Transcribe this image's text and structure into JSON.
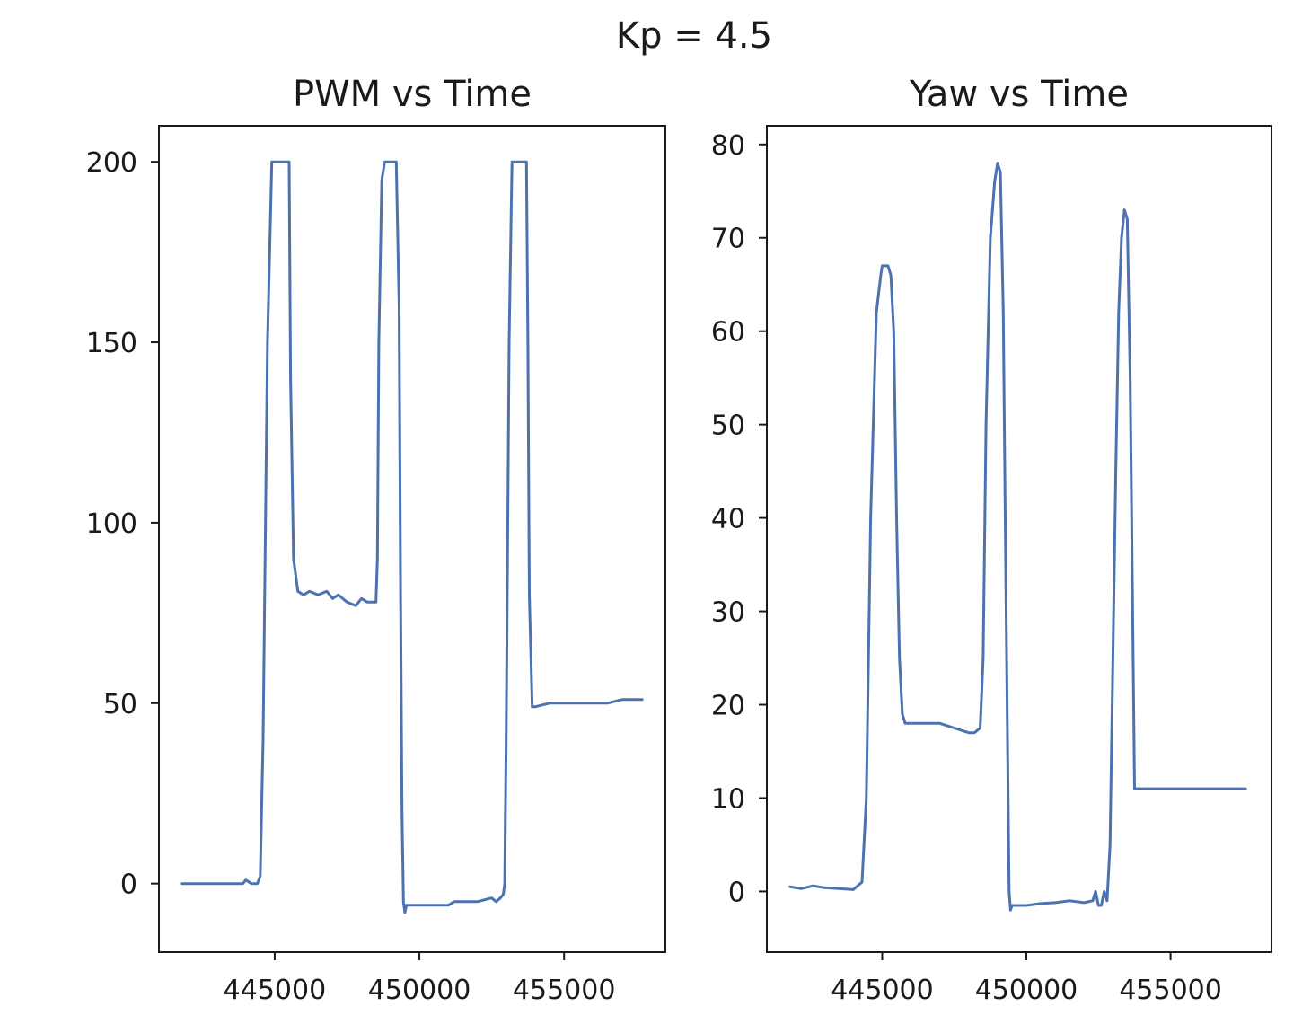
{
  "figure": {
    "suptitle": "Kp = 4.5",
    "line_color": "#4c72b0"
  },
  "chart_data": [
    {
      "type": "line",
      "title": "PWM vs Time",
      "xlabel": "",
      "ylabel": "",
      "xlim": [
        441000,
        458500
      ],
      "ylim": [
        -19,
        210
      ],
      "xticks": [
        445000,
        450000,
        455000
      ],
      "yticks": [
        0,
        50,
        100,
        150,
        200
      ],
      "grid": false,
      "legend": "none",
      "series": [
        {
          "x": [
            441800,
            442500,
            443500,
            443900,
            444000,
            444200,
            444400,
            444500,
            444600,
            444750,
            444900,
            445000,
            445200,
            445400,
            445450,
            445500,
            445550,
            445650,
            445800,
            446000,
            446200,
            446500,
            446800,
            447000,
            447200,
            447500,
            447800,
            448000,
            448200,
            448500,
            448550,
            448600,
            448700,
            448800,
            448900,
            449050,
            449200,
            449300,
            449350,
            449400,
            449450,
            449500,
            449550,
            449600,
            450000,
            450500,
            451000,
            451200,
            451500,
            452000,
            452500,
            452650,
            452800,
            452900,
            452950,
            453000,
            453100,
            453200,
            453400,
            453600,
            453700,
            453750,
            453800,
            453900,
            454000,
            454500,
            455000,
            455500,
            456000,
            456500,
            457000,
            457500,
            457700
          ],
          "y": [
            0,
            0,
            0,
            0,
            1,
            0,
            0,
            2,
            40,
            150,
            200,
            200,
            200,
            200,
            200,
            200,
            140,
            90,
            81,
            80,
            81,
            80,
            81,
            79,
            80,
            78,
            77,
            79,
            78,
            78,
            90,
            150,
            195,
            200,
            200,
            200,
            200,
            160,
            80,
            20,
            -5,
            -8,
            -6,
            -6,
            -6,
            -6,
            -6,
            -5,
            -5,
            -5,
            -4,
            -5,
            -4,
            -3,
            0,
            40,
            150,
            200,
            200,
            200,
            200,
            150,
            80,
            49,
            49,
            50,
            50,
            50,
            50,
            50,
            51,
            51,
            51
          ]
        }
      ]
    },
    {
      "type": "line",
      "title": "Yaw vs Time",
      "xlabel": "",
      "ylabel": "",
      "xlim": [
        441000,
        458500
      ],
      "ylim": [
        -6.5,
        82
      ],
      "xticks": [
        445000,
        450000,
        455000
      ],
      "yticks": [
        0,
        10,
        20,
        30,
        40,
        50,
        60,
        70,
        80
      ],
      "grid": false,
      "legend": "none",
      "series": [
        {
          "x": [
            441800,
            442200,
            442600,
            443000,
            443500,
            444000,
            444300,
            444450,
            444600,
            444800,
            444950,
            445000,
            445200,
            445300,
            445400,
            445500,
            445600,
            445700,
            445800,
            446000,
            446500,
            447000,
            447500,
            448000,
            448200,
            448400,
            448500,
            448600,
            448750,
            448900,
            449000,
            449100,
            449200,
            449300,
            449400,
            449450,
            449500,
            449550,
            449600,
            450000,
            450500,
            451000,
            451500,
            452000,
            452300,
            452400,
            452500,
            452600,
            452700,
            452800,
            452900,
            453000,
            453100,
            453200,
            453300,
            453400,
            453500,
            453600,
            453700,
            453750,
            454000,
            454500,
            455000,
            455500,
            456000,
            456500,
            457000,
            457600
          ],
          "y": [
            0.5,
            0.3,
            0.6,
            0.4,
            0.3,
            0.2,
            1,
            10,
            40,
            62,
            66,
            67,
            67,
            66,
            60,
            40,
            25,
            19,
            18,
            18,
            18,
            18,
            17.5,
            17,
            17,
            17.5,
            25,
            50,
            70,
            76,
            78,
            77,
            62,
            30,
            0,
            -2,
            -1.5,
            -1.5,
            -1.5,
            -1.5,
            -1.3,
            -1.2,
            -1.0,
            -1.2,
            -1.0,
            0,
            -1.5,
            -1.5,
            0,
            -1.0,
            5,
            25,
            45,
            62,
            70,
            73,
            72,
            55,
            25,
            11,
            11,
            11,
            11,
            11,
            11,
            11,
            11,
            11
          ]
        }
      ]
    }
  ]
}
